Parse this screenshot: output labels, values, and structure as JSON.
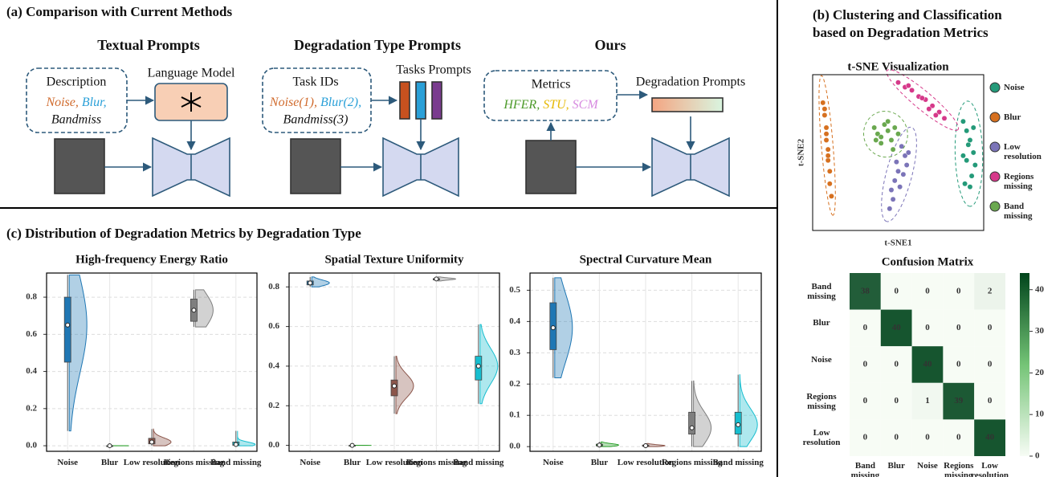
{
  "panel_a": {
    "title": "(a) Comparison with Current Methods",
    "textual": {
      "heading": "Textual Prompts",
      "box_title": "Description",
      "words": [
        "Noise,",
        "Blur,",
        "Bandmiss"
      ],
      "model": "Language Model"
    },
    "task": {
      "heading": "Degradation Type Prompts",
      "box_title": "Task IDs",
      "words": [
        "Noise(1),",
        "Blur(2),",
        "Bandmiss(3)"
      ],
      "prompts": "Tasks Prompts"
    },
    "ours": {
      "heading": "Ours",
      "box_title": "Metrics",
      "words": [
        "HFER,",
        "STU,",
        "SCM"
      ],
      "prompts": "Degradation Prompts"
    }
  },
  "panel_b_title": [
    "(b) Clustering and Classification",
    "based on Degradation Metrics"
  ],
  "panel_c_title": "(c) Distribution of Degradation Metrics by Degradation Type",
  "chart_data": [
    {
      "type": "scatter",
      "title": "t-SNE Visualization",
      "x_label": "t-SNE1",
      "y_label": "t-SNE2",
      "xlim": [
        0,
        100
      ],
      "ylim": [
        0,
        100
      ],
      "legend": "right",
      "series": [
        {
          "name": "Noise",
          "color": "#249a79",
          "x": [
            88,
            90,
            92,
            94,
            95,
            93,
            89,
            91,
            94,
            90,
            92,
            88
          ],
          "y": [
            70,
            64,
            58,
            50,
            42,
            35,
            30,
            55,
            66,
            45,
            28,
            48
          ]
        },
        {
          "name": "Blur",
          "color": "#d6701f",
          "x": [
            6,
            7,
            8,
            8,
            9,
            9,
            10,
            10,
            11,
            7,
            9,
            8
          ],
          "y": [
            82,
            74,
            66,
            58,
            52,
            45,
            38,
            30,
            22,
            78,
            48,
            62
          ]
        },
        {
          "name": "Low resolution",
          "color": "#7b74b8",
          "x": [
            52,
            54,
            55,
            50,
            48,
            46,
            47,
            56,
            53,
            45,
            51,
            49
          ],
          "y": [
            54,
            48,
            42,
            38,
            32,
            26,
            20,
            50,
            36,
            14,
            28,
            44
          ]
        },
        {
          "name": "Regions missing",
          "color": "#d6398a",
          "x": [
            50,
            54,
            58,
            62,
            66,
            70,
            74,
            77,
            56,
            64,
            68,
            72
          ],
          "y": [
            95,
            92,
            90,
            86,
            84,
            80,
            76,
            72,
            93,
            85,
            78,
            74
          ]
        },
        {
          "name": "Band missing",
          "color": "#6aa84f",
          "x": [
            36,
            38,
            40,
            42,
            44,
            46,
            48,
            50,
            40,
            44,
            37,
            47
          ],
          "y": [
            66,
            62,
            60,
            68,
            64,
            58,
            66,
            62,
            56,
            70,
            58,
            52
          ]
        }
      ]
    },
    {
      "type": "heatmap",
      "title": "Confusion Matrix",
      "rows": [
        "Band missing",
        "Blur",
        "Noise",
        "Regions missing",
        "Low resolution"
      ],
      "columns": [
        "Band missing",
        "Blur",
        "Noise",
        "Regions missing",
        "Low resolution"
      ],
      "values": [
        [
          38,
          0,
          0,
          0,
          2
        ],
        [
          0,
          40,
          0,
          0,
          0
        ],
        [
          0,
          0,
          40,
          0,
          0
        ],
        [
          0,
          0,
          1,
          39,
          0
        ],
        [
          0,
          0,
          0,
          0,
          40
        ]
      ],
      "clim": [
        0,
        44
      ],
      "cticks": [
        0,
        10,
        20,
        30,
        40
      ],
      "colors": [
        "#f7fcf5",
        "#00441b"
      ]
    },
    {
      "type": "violin",
      "title": "High-frequency Energy Ratio",
      "categories": [
        "Noise",
        "Blur",
        "Low resolution",
        "Regions missing",
        "Band missing"
      ],
      "colors": [
        "#1f77b4",
        "#2ca02c",
        "#8c564b",
        "#7f7f7f",
        "#17becf"
      ],
      "ylim": [
        -0.03,
        0.93
      ],
      "yticks": [
        {
          "value": 0,
          "label": "0.0"
        },
        0.2,
        0.4,
        0.6,
        0.8
      ],
      "grid": true,
      "min": [
        0.08,
        0,
        0,
        0.64,
        0
      ],
      "q1": [
        0.45,
        0,
        0.01,
        0.67,
        0.003
      ],
      "median": [
        0.65,
        0,
        0.02,
        0.73,
        0.007
      ],
      "q3": [
        0.8,
        0,
        0.04,
        0.79,
        0.02
      ],
      "max": [
        0.92,
        0.003,
        0.09,
        0.84,
        0.08
      ]
    },
    {
      "type": "violin",
      "title": "Spatial Texture Uniformity",
      "categories": [
        "Noise",
        "Blur",
        "Low resolution",
        "Regions missing",
        "Band missing"
      ],
      "colors": [
        "#1f77b4",
        "#2ca02c",
        "#8c564b",
        "#7f7f7f",
        "#17becf"
      ],
      "ylim": [
        -0.03,
        0.87
      ],
      "yticks": [
        {
          "value": 0,
          "label": "0.0"
        },
        0.2,
        0.4,
        0.6,
        0.8
      ],
      "grid": true,
      "min": [
        0.8,
        0,
        0.16,
        0.83,
        0.21
      ],
      "q1": [
        0.81,
        0,
        0.25,
        0.835,
        0.33
      ],
      "median": [
        0.82,
        0,
        0.3,
        0.84,
        0.4
      ],
      "q3": [
        0.83,
        0,
        0.33,
        0.842,
        0.45
      ],
      "max": [
        0.85,
        0.003,
        0.45,
        0.85,
        0.61
      ]
    },
    {
      "type": "violin",
      "title": "Spectral Curvature Mean",
      "categories": [
        "Noise",
        "Blur",
        "Low resolution",
        "Regions missing",
        "Band missing"
      ],
      "colors": [
        "#1f77b4",
        "#2ca02c",
        "#8c564b",
        "#7f7f7f",
        "#17becf"
      ],
      "ylim": [
        -0.015,
        0.555
      ],
      "yticks": [
        {
          "value": 0,
          "label": "0.0"
        },
        0.1,
        0.2,
        0.3,
        0.4,
        0.5
      ],
      "grid": true,
      "min": [
        0.22,
        0,
        0,
        0,
        0
      ],
      "q1": [
        0.31,
        0.002,
        0.001,
        0.04,
        0.04
      ],
      "median": [
        0.38,
        0.005,
        0.003,
        0.06,
        0.07
      ],
      "q3": [
        0.46,
        0.008,
        0.005,
        0.11,
        0.11
      ],
      "max": [
        0.54,
        0.015,
        0.01,
        0.21,
        0.23
      ]
    }
  ]
}
